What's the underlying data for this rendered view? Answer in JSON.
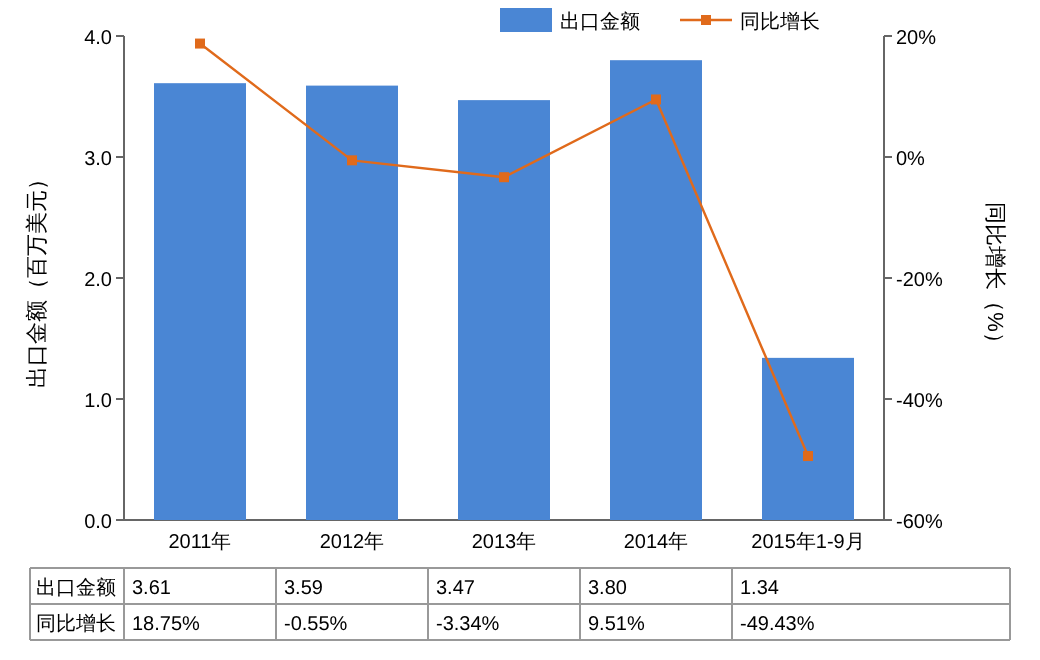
{
  "chart_data": {
    "type": "bar",
    "categories": [
      "2011年",
      "2012年",
      "2013年",
      "2014年",
      "2015年1-9月"
    ],
    "ylabel": "出口金额（百万美元）",
    "y2label": "同比增长（%）",
    "ylim": [
      0,
      4
    ],
    "yticks": [
      {
        "value": 0,
        "label": "0.0"
      },
      {
        "value": 1,
        "label": "1.0"
      },
      {
        "value": 2,
        "label": "2.0"
      },
      {
        "value": 3,
        "label": "3.0"
      },
      {
        "value": 4,
        "label": "4.0"
      }
    ],
    "y2lim": [
      -60,
      20
    ],
    "y2ticks": [
      {
        "value": -60,
        "label": "-60%"
      },
      {
        "value": -40,
        "label": "-40%"
      },
      {
        "value": -20,
        "label": "-20%"
      },
      {
        "value": 0,
        "label": "0%"
      },
      {
        "value": 20,
        "label": "20%"
      }
    ],
    "legend": "top right",
    "marker": "square",
    "series": [
      {
        "name": "出口金额",
        "color": "#4a86d4",
        "values": [
          3.61,
          3.59,
          3.47,
          3.8,
          1.34
        ],
        "value_labels": [
          "3.61",
          "3.59",
          "3.47",
          "3.80",
          "1.34"
        ]
      },
      {
        "name": "同比增长",
        "type": "line",
        "axis": "y2",
        "color": "#e06a1b",
        "values": [
          18.75,
          -0.55,
          -3.34,
          9.51,
          -49.43
        ],
        "value_labels": [
          "18.75%",
          "-0.55%",
          "-3.34%",
          "9.51%",
          "-49.43%"
        ]
      }
    ]
  }
}
